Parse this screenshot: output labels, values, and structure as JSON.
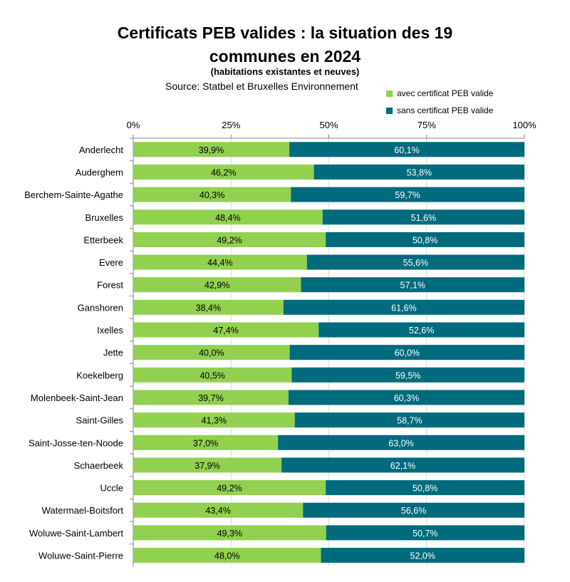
{
  "chart_data": {
    "type": "bar",
    "orientation": "horizontal",
    "stacked": true,
    "title_lines": [
      "Certificats PEB valides : la situation des 19",
      "communes en 2024"
    ],
    "subtitle": "(habitations existantes et neuves)",
    "source": "Source: Statbel et Bruxelles Environnement",
    "xlim": [
      0,
      100
    ],
    "x_ticks": [
      "0%",
      "25%",
      "50%",
      "75%",
      "100%"
    ],
    "x_tick_values": [
      0,
      25,
      50,
      75,
      100
    ],
    "legend_position": "top-right",
    "categories": [
      "Anderlecht",
      "Auderghem",
      "Berchem-Sainte-Agathe",
      "Bruxelles",
      "Etterbeek",
      "Evere",
      "Forest",
      "Ganshoren",
      "Ixelles",
      "Jette",
      "Koekelberg",
      "Molenbeek-Saint-Jean",
      "Saint-Gilles",
      "Saint-Josse-ten-Noode",
      "Schaerbeek",
      "Uccle",
      "Watermael-Boitsfort",
      "Woluwe-Saint-Lambert",
      "Woluwe-Saint-Pierre"
    ],
    "series": [
      {
        "name": "avec certificat PEB valide",
        "color": "#92d050",
        "values": [
          39.9,
          46.2,
          40.3,
          48.4,
          49.2,
          44.4,
          42.9,
          38.4,
          47.4,
          40.0,
          40.5,
          39.7,
          41.3,
          37.0,
          37.9,
          49.2,
          43.4,
          49.3,
          48.0
        ],
        "labels": [
          "39,9%",
          "46,2%",
          "40,3%",
          "48,4%",
          "49,2%",
          "44,4%",
          "42,9%",
          "38,4%",
          "47,4%",
          "40,0%",
          "40,5%",
          "39,7%",
          "41,3%",
          "37,0%",
          "37,9%",
          "49,2%",
          "43,4%",
          "49,3%",
          "48,0%"
        ]
      },
      {
        "name": "sans certificat PEB valide",
        "color": "#006b7d",
        "values": [
          60.1,
          53.8,
          59.7,
          51.6,
          50.8,
          55.6,
          57.1,
          61.6,
          52.6,
          60.0,
          59.5,
          60.3,
          58.7,
          63.0,
          62.1,
          50.8,
          56.6,
          50.7,
          52.0
        ],
        "labels": [
          "60,1%",
          "53,8%",
          "59,7%",
          "51,6%",
          "50,8%",
          "55,6%",
          "57,1%",
          "61,6%",
          "52,6%",
          "60,0%",
          "59,5%",
          "60,3%",
          "58,7%",
          "63,0%",
          "62,1%",
          "50,8%",
          "56,6%",
          "50,7%",
          "52,0%"
        ]
      }
    ]
  }
}
